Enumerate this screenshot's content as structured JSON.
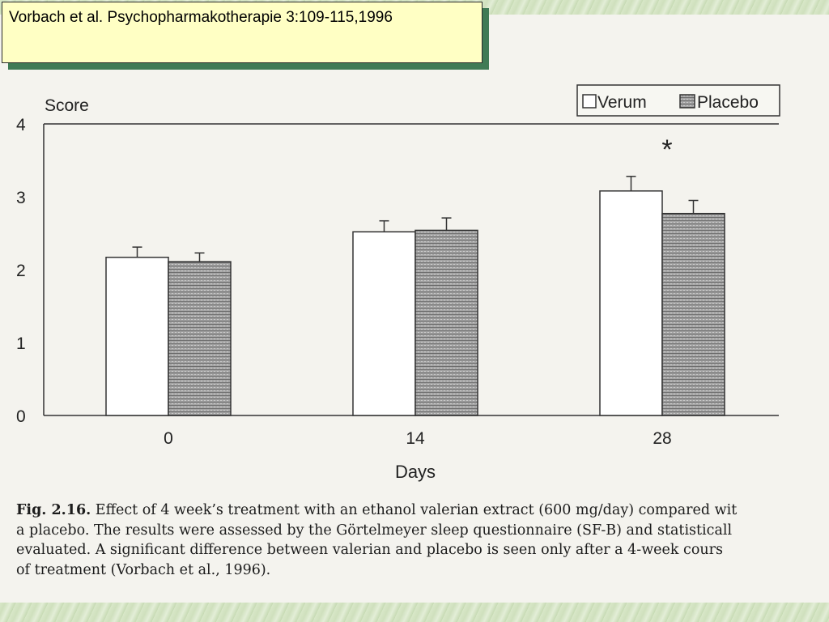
{
  "citation": "Vorbach et al. Psychopharmakotherapie 3:109-115,1996",
  "chart_data": {
    "type": "bar",
    "ylabel": "Score",
    "xlabel": "Days",
    "ylim": [
      0,
      4
    ],
    "yticks": [
      "0",
      "1",
      "2",
      "3",
      "4"
    ],
    "categories": [
      "0",
      "14",
      "28"
    ],
    "series": [
      {
        "name": "Verum",
        "values": [
          2.17,
          2.52,
          3.08
        ],
        "errors": [
          0.14,
          0.15,
          0.2
        ],
        "color": "#ffffff"
      },
      {
        "name": "Placebo",
        "values": [
          2.11,
          2.54,
          2.77
        ],
        "errors": [
          0.12,
          0.17,
          0.18
        ],
        "color": "#9a9a9a"
      }
    ],
    "significance": [
      {
        "category": "28",
        "marker": "*"
      }
    ],
    "legend": {
      "placement": "top-right",
      "labels": [
        "Verum",
        "Placebo"
      ]
    },
    "grid": false
  },
  "caption": {
    "label": "Fig. 2.16.",
    "lines": [
      "Effect of 4 week’s treatment with an ethanol valerian extract (600 mg/day) compared wit",
      "a placebo. The results were assessed by the Görtelmeyer sleep questionnaire (SF-B) and statisticall",
      "evaluated. A significant difference between valerian and placebo is seen only after a 4-week cours",
      "of treatment (Vorbach et al., 1996)."
    ]
  }
}
